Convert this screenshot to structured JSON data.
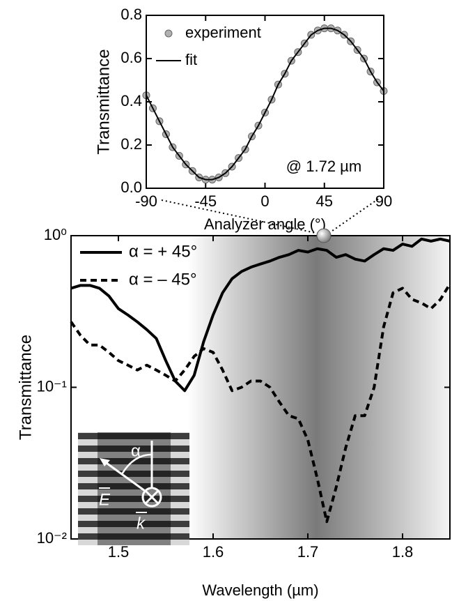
{
  "chart_data": [
    {
      "type": "line",
      "xlabel": "Analyzer angle (°)",
      "ylabel": "Transmittance",
      "annotation": "@ 1.72 µm",
      "x": [
        -90,
        -85,
        -80,
        -75,
        -70,
        -65,
        -60,
        -55,
        -50,
        -45,
        -40,
        -35,
        -30,
        -25,
        -20,
        -15,
        -10,
        -5,
        0,
        5,
        10,
        15,
        20,
        25,
        30,
        35,
        40,
        45,
        50,
        55,
        60,
        65,
        70,
        75,
        80,
        85,
        90
      ],
      "series": [
        {
          "name": "experiment",
          "style": "markers",
          "color": "#b0b0b0",
          "values": [
            0.43,
            0.37,
            0.31,
            0.25,
            0.19,
            0.15,
            0.11,
            0.08,
            0.05,
            0.04,
            0.04,
            0.05,
            0.07,
            0.1,
            0.14,
            0.18,
            0.24,
            0.29,
            0.35,
            0.41,
            0.48,
            0.53,
            0.59,
            0.63,
            0.67,
            0.71,
            0.73,
            0.74,
            0.74,
            0.73,
            0.71,
            0.68,
            0.64,
            0.6,
            0.54,
            0.49,
            0.45
          ]
        },
        {
          "name": "fit",
          "style": "line",
          "color": "#000000",
          "values": [
            0.43,
            0.37,
            0.31,
            0.25,
            0.19,
            0.15,
            0.11,
            0.08,
            0.05,
            0.04,
            0.04,
            0.05,
            0.07,
            0.1,
            0.14,
            0.18,
            0.24,
            0.29,
            0.35,
            0.41,
            0.48,
            0.53,
            0.59,
            0.63,
            0.67,
            0.71,
            0.73,
            0.74,
            0.74,
            0.73,
            0.71,
            0.68,
            0.64,
            0.6,
            0.54,
            0.49,
            0.45
          ]
        }
      ],
      "xlim": [
        -90,
        90
      ],
      "xticks": [
        -90,
        -45,
        0,
        45,
        90
      ],
      "ylim": [
        0,
        0.8
      ],
      "yticks": [
        {
          "value": 0,
          "label": "0.0"
        },
        0.2,
        0.4,
        0.6,
        0.8
      ],
      "log_y": false
    },
    {
      "type": "line",
      "xlabel": "Wavelength (µm)",
      "ylabel": "Transmittance",
      "x": [
        1.45,
        1.46,
        1.47,
        1.48,
        1.49,
        1.5,
        1.51,
        1.52,
        1.53,
        1.54,
        1.55,
        1.56,
        1.57,
        1.58,
        1.59,
        1.6,
        1.61,
        1.62,
        1.63,
        1.64,
        1.65,
        1.66,
        1.67,
        1.68,
        1.69,
        1.7,
        1.71,
        1.72,
        1.73,
        1.74,
        1.75,
        1.76,
        1.77,
        1.78,
        1.79,
        1.8,
        1.81,
        1.82,
        1.83,
        1.84,
        1.85
      ],
      "series": [
        {
          "name": "α = + 45°",
          "style": "line",
          "dash": "solid",
          "color": "#000000",
          "values": [
            0.45,
            0.47,
            0.47,
            0.45,
            0.4,
            0.33,
            0.3,
            0.27,
            0.24,
            0.21,
            0.15,
            0.11,
            0.095,
            0.12,
            0.2,
            0.3,
            0.42,
            0.52,
            0.58,
            0.62,
            0.65,
            0.68,
            0.72,
            0.75,
            0.8,
            0.78,
            0.82,
            0.8,
            0.72,
            0.75,
            0.7,
            0.68,
            0.75,
            0.82,
            0.8,
            0.88,
            0.85,
            0.95,
            0.92,
            0.95,
            0.92
          ]
        },
        {
          "name": "α = – 45°",
          "style": "line",
          "dash": "dashed",
          "color": "#000000",
          "values": [
            0.27,
            0.22,
            0.19,
            0.19,
            0.17,
            0.15,
            0.14,
            0.13,
            0.14,
            0.13,
            0.12,
            0.11,
            0.13,
            0.16,
            0.18,
            0.17,
            0.13,
            0.095,
            0.1,
            0.11,
            0.11,
            0.1,
            0.08,
            0.065,
            0.062,
            0.045,
            0.025,
            0.013,
            0.022,
            0.04,
            0.065,
            0.065,
            0.1,
            0.25,
            0.42,
            0.45,
            0.38,
            0.36,
            0.33,
            0.38,
            0.48
          ]
        }
      ],
      "xlim": [
        1.45,
        1.85
      ],
      "xticks": [
        1.5,
        1.6,
        1.7,
        1.8
      ],
      "ylim": [
        0.01,
        1
      ],
      "yticks": [
        {
          "value": 0.01,
          "label": "10⁻²"
        },
        {
          "value": 0.1,
          "label": "10⁻¹"
        },
        {
          "value": 1,
          "label": "10⁰"
        }
      ],
      "log_y": true
    }
  ],
  "inset_image": {
    "angle": "α",
    "field": "E",
    "wavevector": "k"
  }
}
